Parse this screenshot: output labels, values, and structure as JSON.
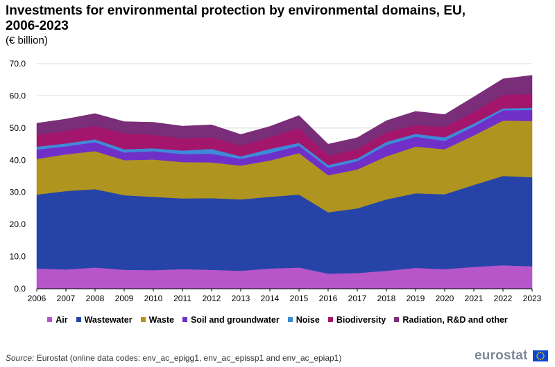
{
  "title": "Investments for environmental protection by environmental domains, EU, 2006-2023",
  "subtitle": "(€ billion)",
  "source_label": "Source:",
  "source_text": "Eurostat (online data codes: env_ac_epigg1, env_ac_epissp1 and env_ac_epiap1)",
  "logo_text": "eurostat",
  "logo_icon": "eu-flag-icon",
  "chart_data": {
    "type": "area",
    "stacked": true,
    "title": "Investments for environmental protection by environmental domains, EU, 2006-2023",
    "ylabel": "€ billion",
    "ylim": [
      0,
      70
    ],
    "yticks": [
      0,
      10,
      20,
      30,
      40,
      50,
      60,
      70
    ],
    "ytick_labels": [
      "0.0",
      "10.0",
      "20.0",
      "30.0",
      "40.0",
      "50.0",
      "60.0",
      "70.0"
    ],
    "grid": true,
    "legend_position": "bottom",
    "x": [
      "2006",
      "2007",
      "2008",
      "2009",
      "2010",
      "2011",
      "2012",
      "2013",
      "2014",
      "2015",
      "2016",
      "2017",
      "2018",
      "2019",
      "2020",
      "2021",
      "2022",
      "2023"
    ],
    "series": [
      {
        "name": "Air",
        "color": "#b656c8",
        "values": [
          6.3,
          6.0,
          6.6,
          5.9,
          5.8,
          6.1,
          5.9,
          5.6,
          6.3,
          6.6,
          4.7,
          4.9,
          5.6,
          6.5,
          6.1,
          6.8,
          7.3,
          7.0
        ]
      },
      {
        "name": "Wastewater",
        "color": "#2644a8",
        "values": [
          23.0,
          24.4,
          24.4,
          23.2,
          22.8,
          22.0,
          22.3,
          22.2,
          22.3,
          22.7,
          19.1,
          20.1,
          22.2,
          23.2,
          23.3,
          25.5,
          27.8,
          27.7
        ]
      },
      {
        "name": "Waste",
        "color": "#b09420",
        "values": [
          11.1,
          11.4,
          11.8,
          10.9,
          11.6,
          11.3,
          11.1,
          10.5,
          11.3,
          12.9,
          11.5,
          12.1,
          13.4,
          14.5,
          14.0,
          15.4,
          17.2,
          17.5
        ]
      },
      {
        "name": "Soil and groundwater",
        "color": "#7030c8",
        "values": [
          2.9,
          2.5,
          2.8,
          2.4,
          2.6,
          2.5,
          2.7,
          2.1,
          2.3,
          2.3,
          2.3,
          2.6,
          3.5,
          3.1,
          2.6,
          2.8,
          3.2,
          3.4
        ]
      },
      {
        "name": "Noise",
        "color": "#3e8ad8",
        "values": [
          0.9,
          0.9,
          0.9,
          1.0,
          0.9,
          1.1,
          1.5,
          0.8,
          1.3,
          0.9,
          0.9,
          0.8,
          1.0,
          0.9,
          1.1,
          0.9,
          0.6,
          0.7
        ]
      },
      {
        "name": "Biodiversity",
        "color": "#a3166b",
        "values": [
          3.7,
          3.9,
          4.2,
          5.0,
          4.2,
          3.8,
          3.6,
          3.3,
          3.6,
          4.6,
          2.9,
          2.9,
          2.9,
          2.7,
          3.2,
          3.6,
          4.2,
          4.3
        ]
      },
      {
        "name": "Radiation, R&D and other",
        "color": "#7a2d78",
        "values": [
          3.6,
          3.7,
          3.8,
          3.6,
          3.9,
          3.8,
          3.9,
          3.5,
          3.4,
          3.9,
          3.6,
          3.6,
          3.7,
          4.3,
          3.9,
          4.7,
          5.0,
          5.8
        ]
      }
    ]
  }
}
